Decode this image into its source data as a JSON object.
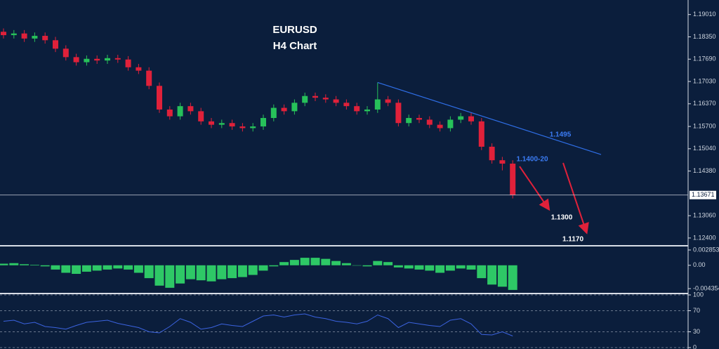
{
  "chart_data": [
    {
      "type": "candlestick",
      "title": "EURUSD",
      "subtitle": "H4 Chart",
      "open": [
        1.185,
        1.184,
        1.1845,
        1.183,
        1.1838,
        1.1825,
        1.18,
        1.1775,
        1.176,
        1.177,
        1.1765,
        1.1772,
        1.1768,
        1.1745,
        1.1735,
        1.169,
        1.162,
        1.16,
        1.163,
        1.1615,
        1.1585,
        1.1575,
        1.158,
        1.157,
        1.1565,
        1.157,
        1.1595,
        1.1625,
        1.1615,
        1.164,
        1.166,
        1.1655,
        1.165,
        1.164,
        1.163,
        1.1615,
        1.162,
        1.165,
        1.164,
        1.158,
        1.1595,
        1.159,
        1.1575,
        1.1565,
        1.159,
        1.16,
        1.1585,
        1.151,
        1.147,
        1.146
      ],
      "high": [
        1.186,
        1.1855,
        1.1855,
        1.1848,
        1.1848,
        1.1835,
        1.181,
        1.1785,
        1.178,
        1.178,
        1.1782,
        1.1782,
        1.1778,
        1.1755,
        1.1745,
        1.17,
        1.163,
        1.164,
        1.164,
        1.1625,
        1.1595,
        1.159,
        1.159,
        1.158,
        1.158,
        1.1605,
        1.1635,
        1.1635,
        1.165,
        1.167,
        1.167,
        1.1665,
        1.166,
        1.165,
        1.164,
        1.163,
        1.17,
        1.166,
        1.165,
        1.1605,
        1.1605,
        1.16,
        1.1585,
        1.16,
        1.161,
        1.161,
        1.1595,
        1.152,
        1.148,
        1.147
      ],
      "low": [
        1.183,
        1.183,
        1.182,
        1.182,
        1.1815,
        1.179,
        1.1765,
        1.175,
        1.175,
        1.1755,
        1.1755,
        1.1758,
        1.1735,
        1.1725,
        1.168,
        1.161,
        1.159,
        1.159,
        1.1605,
        1.1575,
        1.1565,
        1.1565,
        1.156,
        1.1555,
        1.1555,
        1.156,
        1.1585,
        1.1605,
        1.1605,
        1.163,
        1.1645,
        1.164,
        1.163,
        1.162,
        1.1605,
        1.1605,
        1.161,
        1.163,
        1.157,
        1.157,
        1.158,
        1.1565,
        1.1555,
        1.1555,
        1.158,
        1.1575,
        1.15,
        1.146,
        1.144,
        1.1357
      ],
      "close": [
        1.184,
        1.1845,
        1.183,
        1.1838,
        1.1825,
        1.18,
        1.1775,
        1.176,
        1.177,
        1.1765,
        1.1772,
        1.1768,
        1.1745,
        1.1735,
        1.169,
        1.162,
        1.16,
        1.163,
        1.1615,
        1.1585,
        1.1575,
        1.158,
        1.157,
        1.1565,
        1.157,
        1.1595,
        1.1625,
        1.1615,
        1.164,
        1.166,
        1.1655,
        1.165,
        1.164,
        1.163,
        1.1615,
        1.162,
        1.165,
        1.164,
        1.158,
        1.1595,
        1.159,
        1.1575,
        1.1565,
        1.159,
        1.16,
        1.1585,
        1.151,
        1.147,
        1.146,
        1.1367
      ],
      "up_color": "#27c15a",
      "down_color": "#e0213a",
      "ylim": [
        1.1217,
        1.1944
      ],
      "yticks": [
        {
          "value": 1.1901,
          "label": "1.19010"
        },
        {
          "value": 1.1835,
          "label": "1.18350"
        },
        {
          "value": 1.1769,
          "label": "1.17690"
        },
        {
          "value": 1.1703,
          "label": "1.17030"
        },
        {
          "value": 1.1637,
          "label": "1.16370"
        },
        {
          "value": 1.157,
          "label": "1.15700"
        },
        {
          "value": 1.1504,
          "label": "1.15040"
        },
        {
          "value": 1.1438,
          "label": "1.14380"
        },
        {
          "value": 1.1306,
          "label": "1.13060"
        },
        {
          "value": 1.124,
          "label": "1.12400"
        }
      ],
      "last_price": {
        "value": 1.13671,
        "label": "1.13671"
      },
      "trendline": {
        "x": [
          36,
          57.5
        ],
        "y": [
          1.17,
          1.1487
        ],
        "color": "#2f6fe8"
      },
      "annotations": [
        "1.1495",
        "1.1400-20",
        "1.1300",
        "1.1170"
      ]
    },
    {
      "type": "bar",
      "values": [
        0.0003,
        0.0004,
        0.0002,
        0.0001,
        -0.0002,
        -0.0008,
        -0.0014,
        -0.0016,
        -0.0012,
        -0.001,
        -0.0008,
        -0.0006,
        -0.0008,
        -0.0014,
        -0.0024,
        -0.0038,
        -0.0042,
        -0.0034,
        -0.0026,
        -0.0028,
        -0.003,
        -0.0026,
        -0.0024,
        -0.0022,
        -0.0018,
        -0.001,
        -0.0002,
        0.0006,
        0.001,
        0.0014,
        0.0014,
        0.0012,
        0.0008,
        0.0004,
        0.0,
        -0.0002,
        0.0008,
        0.0006,
        -0.0004,
        -0.0006,
        -0.0008,
        -0.001,
        -0.0014,
        -0.001,
        -0.0006,
        -0.0008,
        -0.0024,
        -0.0036,
        -0.004,
        -0.0046
      ],
      "color": "#2ec866",
      "ylim": [
        -0.00527,
        0.00364
      ],
      "yticks": [
        0.002853,
        {
          "value": 0,
          "label": "0.00"
        },
        -0.004354
      ]
    },
    {
      "type": "line",
      "values": [
        50,
        52,
        45,
        48,
        40,
        38,
        35,
        42,
        48,
        50,
        52,
        46,
        42,
        38,
        30,
        28,
        40,
        55,
        48,
        35,
        38,
        45,
        42,
        40,
        50,
        60,
        62,
        58,
        62,
        64,
        58,
        55,
        50,
        48,
        45,
        50,
        62,
        55,
        38,
        48,
        45,
        42,
        40,
        52,
        55,
        45,
        25,
        24,
        30,
        22
      ],
      "color": "#3b63e0",
      "ylim": [
        0,
        100
      ],
      "yticks": [
        0,
        30,
        70,
        100
      ],
      "grid": true
    }
  ]
}
